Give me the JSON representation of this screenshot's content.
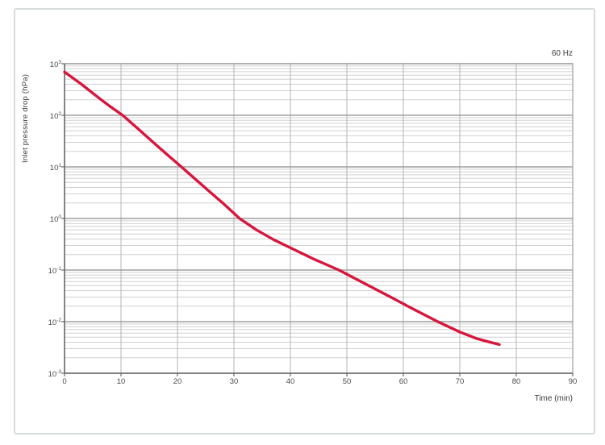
{
  "chart_data": {
    "type": "line",
    "title": "",
    "series_label": "60 Hz",
    "xlabel": "Time (min)",
    "ylabel": "Inlet pressure drop (hPa)",
    "x_scale": "linear",
    "y_scale": "log",
    "xlim": [
      0,
      90
    ],
    "ylim": [
      0.001,
      1000
    ],
    "x_ticks": [
      0,
      10,
      20,
      30,
      40,
      50,
      60,
      70,
      80,
      90
    ],
    "y_tick_exponents": [
      3,
      2,
      1,
      0,
      -1,
      -2,
      -3
    ],
    "grid": {
      "vertical_major": true,
      "horizontal_major": true,
      "horizontal_minor": true,
      "legend": "none"
    },
    "series": [
      {
        "name": "60 Hz",
        "x": [
          0,
          3,
          6,
          8,
          10.3,
          13,
          16,
          18,
          20.7,
          23,
          26,
          28,
          31,
          34,
          37,
          40,
          44,
          48.6,
          53,
          58,
          62,
          66.1,
          70,
          73,
          75,
          77
        ],
        "y": [
          690,
          400,
          220,
          150,
          100,
          55,
          28,
          18,
          10,
          6.0,
          3.1,
          2.0,
          1.0,
          0.6,
          0.39,
          0.27,
          0.166,
          0.1,
          0.056,
          0.029,
          0.017,
          0.01,
          0.0063,
          0.0047,
          0.0041,
          0.0036
        ]
      }
    ]
  },
  "colors": {
    "curve": "#d5173d",
    "grid_minor": "#d0d0d0",
    "grid_major_h": "#9e9e9e",
    "grid_major_v": "#b3b3b3",
    "plot_border": "#9e9e9e",
    "spine": "#6b6b6b",
    "text": "#3c3c3c",
    "card_border": "#d7dddd"
  }
}
